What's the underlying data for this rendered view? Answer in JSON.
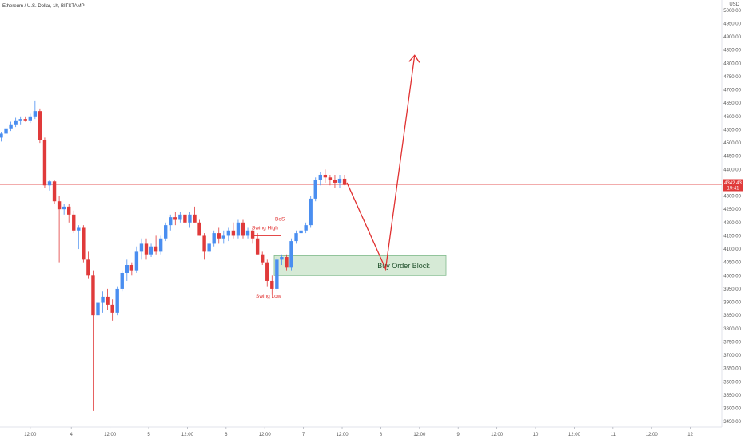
{
  "chart_data": {
    "type": "candlestick",
    "title": "Ethereum / U.S. Dollar, 1h, BITSTAMP",
    "currency": "USD",
    "y_ticks": [
      3450,
      3500,
      3550,
      3600,
      3650,
      3700,
      3750,
      3800,
      3850,
      3900,
      3950,
      4000,
      4050,
      4100,
      4150,
      4200,
      4250,
      4300,
      4350,
      4400,
      4450,
      4500,
      4550,
      4600,
      4650,
      4700,
      4750,
      4800,
      4850,
      4900,
      4950,
      5000
    ],
    "y_tick_labels": [
      "3450.00",
      "3500.00",
      "3550.00",
      "3600.00",
      "3650.00",
      "3700.00",
      "3750.00",
      "3800.00",
      "3850.00",
      "3900.00",
      "3950.00",
      "4000.00",
      "4050.00",
      "4100.00",
      "4150.00",
      "4200.00",
      "4250.00",
      "4300.00",
      "4350.00",
      "4400.00",
      "4450.00",
      "4500.00",
      "4550.00",
      "4600.00",
      "4650.00",
      "4700.00",
      "4750.00",
      "4800.00",
      "4850.00",
      "4900.00",
      "4950.00",
      "5000.00"
    ],
    "ylim": [
      3440,
      5010
    ],
    "x_ticks": [
      {
        "label": "12:00",
        "bar": 6
      },
      {
        "label": "4",
        "bar": 14.5
      },
      {
        "label": "12:00",
        "bar": 22.5
      },
      {
        "label": "5",
        "bar": 30.5
      },
      {
        "label": "12:00",
        "bar": 38.5
      },
      {
        "label": "6",
        "bar": 46.5
      },
      {
        "label": "12:00",
        "bar": 54.5
      },
      {
        "label": "7",
        "bar": 62.5
      },
      {
        "label": "12:00",
        "bar": 70.5
      },
      {
        "label": "8",
        "bar": 78.5
      },
      {
        "label": "12:00",
        "bar": 86.5
      },
      {
        "label": "9",
        "bar": 94.5
      },
      {
        "label": "12:00",
        "bar": 102.5
      },
      {
        "label": "10",
        "bar": 110.5
      },
      {
        "label": "12:00",
        "bar": 118.5
      },
      {
        "label": "11",
        "bar": 126.5
      },
      {
        "label": "12:00",
        "bar": 134.5
      },
      {
        "label": "12",
        "bar": 142.5
      }
    ],
    "candles": [
      [
        4520,
        4540,
        4505,
        4535
      ],
      [
        4535,
        4560,
        4525,
        4555
      ],
      [
        4555,
        4580,
        4545,
        4570
      ],
      [
        4570,
        4595,
        4560,
        4585
      ],
      [
        4585,
        4600,
        4570,
        4590
      ],
      [
        4590,
        4600,
        4580,
        4585
      ],
      [
        4585,
        4610,
        4575,
        4600
      ],
      [
        4600,
        4660,
        4590,
        4620
      ],
      [
        4620,
        4630,
        4500,
        4510
      ],
      [
        4510,
        4520,
        4330,
        4340
      ],
      [
        4340,
        4360,
        4320,
        4355
      ],
      [
        4355,
        4360,
        4270,
        4280
      ],
      [
        4280,
        4300,
        4050,
        4250
      ],
      [
        4250,
        4270,
        4230,
        4260
      ],
      [
        4260,
        4270,
        4200,
        4230
      ],
      [
        4230,
        4245,
        4160,
        4170
      ],
      [
        4170,
        4190,
        4100,
        4180
      ],
      [
        4180,
        4190,
        4050,
        4060
      ],
      [
        4060,
        4090,
        3990,
        4000
      ],
      [
        4000,
        4020,
        3490,
        3850
      ],
      [
        3850,
        3940,
        3800,
        3900
      ],
      [
        3900,
        3940,
        3860,
        3920
      ],
      [
        3920,
        3950,
        3870,
        3890
      ],
      [
        3890,
        3910,
        3830,
        3860
      ],
      [
        3860,
        3960,
        3850,
        3950
      ],
      [
        3950,
        4020,
        3940,
        4010
      ],
      [
        4010,
        4060,
        3980,
        4040
      ],
      [
        4040,
        4050,
        4000,
        4020
      ],
      [
        4020,
        4110,
        4010,
        4090
      ],
      [
        4090,
        4140,
        4060,
        4120
      ],
      [
        4120,
        4140,
        4060,
        4080
      ],
      [
        4080,
        4120,
        4070,
        4110
      ],
      [
        4110,
        4150,
        4080,
        4090
      ],
      [
        4090,
        4150,
        4080,
        4140
      ],
      [
        4140,
        4200,
        4130,
        4190
      ],
      [
        4190,
        4230,
        4170,
        4220
      ],
      [
        4220,
        4240,
        4190,
        4210
      ],
      [
        4210,
        4240,
        4200,
        4230
      ],
      [
        4230,
        4240,
        4180,
        4200
      ],
      [
        4200,
        4240,
        4180,
        4230
      ],
      [
        4230,
        4260,
        4200,
        4200
      ],
      [
        4200,
        4210,
        4150,
        4150
      ],
      [
        4150,
        4160,
        4060,
        4090
      ],
      [
        4090,
        4130,
        4080,
        4120
      ],
      [
        4120,
        4170,
        4110,
        4160
      ],
      [
        4160,
        4180,
        4120,
        4140
      ],
      [
        4140,
        4170,
        4120,
        4150
      ],
      [
        4150,
        4180,
        4130,
        4170
      ],
      [
        4170,
        4200,
        4140,
        4150
      ],
      [
        4150,
        4210,
        4140,
        4200
      ],
      [
        4200,
        4210,
        4140,
        4150
      ],
      [
        4150,
        4180,
        4140,
        4170
      ],
      [
        4170,
        4180,
        4120,
        4140
      ],
      [
        4140,
        4160,
        4080,
        4080
      ],
      [
        4080,
        4090,
        4040,
        4050
      ],
      [
        4050,
        4060,
        3960,
        3980
      ],
      [
        3980,
        4000,
        3930,
        3950
      ],
      [
        3950,
        4070,
        3940,
        4060
      ],
      [
        4060,
        4080,
        4040,
        4070
      ],
      [
        4070,
        4080,
        4020,
        4030
      ],
      [
        4030,
        4140,
        4020,
        4130
      ],
      [
        4130,
        4170,
        4120,
        4160
      ],
      [
        4160,
        4180,
        4150,
        4170
      ],
      [
        4170,
        4200,
        4160,
        4190
      ],
      [
        4190,
        4300,
        4180,
        4290
      ],
      [
        4290,
        4370,
        4280,
        4360
      ],
      [
        4360,
        4390,
        4340,
        4380
      ],
      [
        4380,
        4400,
        4350,
        4370
      ],
      [
        4370,
        4380,
        4340,
        4360
      ],
      [
        4360,
        4380,
        4330,
        4350
      ],
      [
        4350,
        4380,
        4330,
        4365
      ],
      [
        4365,
        4380,
        4340,
        4342
      ]
    ],
    "current_price": {
      "value": 4342.43,
      "label": "4342.43",
      "countdown": "19:41"
    },
    "annotations": {
      "swing_high": {
        "text": "Swing High",
        "price": 4150
      },
      "bos": {
        "text": "BoS"
      },
      "swing_low": {
        "text": "Swing Low",
        "price": 3925
      },
      "order_block": {
        "text": "Buy Order Block",
        "top": 4075,
        "bottom": 4000
      },
      "projection": [
        {
          "bar": 71.5,
          "price": 4350
        },
        {
          "bar": 79.5,
          "price": 4025
        },
        {
          "bar": 85.5,
          "price": 4830
        }
      ]
    },
    "colors": {
      "up": "#4a8ef0",
      "down": "#e03a3a",
      "price_line": "#f0a0a0",
      "annotation": "#e03030",
      "zone_fill": "#d6ead6",
      "zone_border": "#7fb98a",
      "price_tag": "#e03a3a"
    },
    "grid": false,
    "legend": "none"
  }
}
